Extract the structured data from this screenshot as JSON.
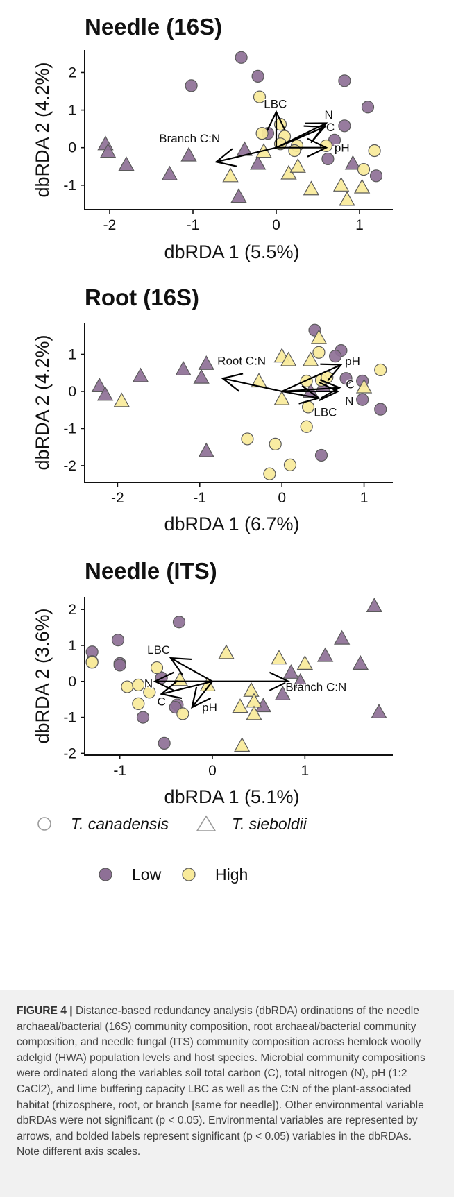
{
  "colors": {
    "low": "#8e7096",
    "high": "#f8ea9a",
    "marker_edge": "#5a5a5a",
    "open_marker": "#9a9a9a"
  },
  "chart_data": [
    {
      "type": "scatter",
      "title": "Needle (16S)",
      "xlabel": "dbRDA 1 (5.5%)",
      "ylabel": "dbRDA 2 (4.2%)",
      "xlim": [
        -2.3,
        1.4
      ],
      "ylim": [
        -1.65,
        2.6
      ],
      "xticks": [
        -2,
        -1,
        0,
        1
      ],
      "yticks": [
        -1,
        0,
        1,
        2
      ],
      "points": [
        {
          "x": -2.05,
          "y": 0.1,
          "shape": "triangle",
          "level": "Low"
        },
        {
          "x": -2.02,
          "y": -0.1,
          "shape": "triangle",
          "level": "Low"
        },
        {
          "x": -1.8,
          "y": -0.45,
          "shape": "triangle",
          "level": "Low"
        },
        {
          "x": -1.28,
          "y": -0.7,
          "shape": "triangle",
          "level": "Low"
        },
        {
          "x": -1.05,
          "y": -0.2,
          "shape": "triangle",
          "level": "Low"
        },
        {
          "x": -1.02,
          "y": 1.65,
          "shape": "circle",
          "level": "Low"
        },
        {
          "x": -0.42,
          "y": 2.4,
          "shape": "circle",
          "level": "Low"
        },
        {
          "x": -0.45,
          "y": -1.3,
          "shape": "triangle",
          "level": "Low"
        },
        {
          "x": -0.38,
          "y": -0.05,
          "shape": "triangle",
          "level": "Low"
        },
        {
          "x": -0.22,
          "y": -0.42,
          "shape": "triangle",
          "level": "Low"
        },
        {
          "x": -0.22,
          "y": 1.9,
          "shape": "circle",
          "level": "Low"
        },
        {
          "x": -0.1,
          "y": 0.38,
          "shape": "circle",
          "level": "Low"
        },
        {
          "x": 0.82,
          "y": 1.78,
          "shape": "circle",
          "level": "Low"
        },
        {
          "x": 1.1,
          "y": 1.08,
          "shape": "circle",
          "level": "Low"
        },
        {
          "x": 0.82,
          "y": 0.58,
          "shape": "circle",
          "level": "Low"
        },
        {
          "x": 0.7,
          "y": 0.2,
          "shape": "circle",
          "level": "Low"
        },
        {
          "x": 0.62,
          "y": -0.3,
          "shape": "circle",
          "level": "Low"
        },
        {
          "x": 0.92,
          "y": -0.42,
          "shape": "triangle",
          "level": "Low"
        },
        {
          "x": 1.2,
          "y": -0.75,
          "shape": "circle",
          "level": "Low"
        },
        {
          "x": -0.2,
          "y": 1.35,
          "shape": "circle",
          "level": "High"
        },
        {
          "x": -0.17,
          "y": 0.38,
          "shape": "circle",
          "level": "High"
        },
        {
          "x": -0.15,
          "y": -0.1,
          "shape": "triangle",
          "level": "High"
        },
        {
          "x": 0.05,
          "y": 0.62,
          "shape": "circle",
          "level": "High"
        },
        {
          "x": 0.1,
          "y": 0.3,
          "shape": "circle",
          "level": "High"
        },
        {
          "x": 0.05,
          "y": 0.1,
          "shape": "circle",
          "level": "High"
        },
        {
          "x": 0.25,
          "y": 0.05,
          "shape": "circle",
          "level": "High"
        },
        {
          "x": 0.22,
          "y": -0.08,
          "shape": "circle",
          "level": "High"
        },
        {
          "x": 0.6,
          "y": 0.05,
          "shape": "circle",
          "level": "High"
        },
        {
          "x": -0.55,
          "y": -0.75,
          "shape": "triangle",
          "level": "High"
        },
        {
          "x": 0.15,
          "y": -0.68,
          "shape": "triangle",
          "level": "High"
        },
        {
          "x": 0.26,
          "y": -0.5,
          "shape": "triangle",
          "level": "High"
        },
        {
          "x": 0.42,
          "y": -1.1,
          "shape": "triangle",
          "level": "High"
        },
        {
          "x": 0.78,
          "y": -1.0,
          "shape": "triangle",
          "level": "High"
        },
        {
          "x": 0.85,
          "y": -1.38,
          "shape": "triangle",
          "level": "High"
        },
        {
          "x": 1.03,
          "y": -1.05,
          "shape": "triangle",
          "level": "High"
        },
        {
          "x": 1.05,
          "y": -0.58,
          "shape": "circle",
          "level": "High"
        },
        {
          "x": 1.18,
          "y": -0.08,
          "shape": "circle",
          "level": "High"
        }
      ],
      "vectors": [
        {
          "label": "LBC",
          "x": 0.0,
          "y": 0.95,
          "lx": -0.01,
          "ly": 1.17
        },
        {
          "label": "N",
          "x": 0.6,
          "y": 0.65,
          "lx": 0.63,
          "ly": 0.88
        },
        {
          "label": "C",
          "x": 0.58,
          "y": 0.55,
          "lx": 0.65,
          "ly": 0.55
        },
        {
          "label": "pH",
          "x": 0.6,
          "y": 0.0,
          "lx": 0.79,
          "ly": 0.0
        },
        {
          "label": "Branch C:N",
          "x": -0.72,
          "y": -0.38,
          "lx": -1.04,
          "ly": 0.25
        }
      ]
    },
    {
      "type": "scatter",
      "title": "Root (16S)",
      "xlabel": "dbRDA 1 (6.7%)",
      "ylabel": "dbRDA 2 (4.2%)",
      "xlim": [
        -2.4,
        1.35
      ],
      "ylim": [
        -2.45,
        1.85
      ],
      "xticks": [
        -2,
        -1,
        0,
        1
      ],
      "yticks": [
        -2,
        -1,
        0,
        1
      ],
      "points": [
        {
          "x": -2.22,
          "y": 0.15,
          "shape": "triangle",
          "level": "Low"
        },
        {
          "x": -2.15,
          "y": -0.08,
          "shape": "triangle",
          "level": "Low"
        },
        {
          "x": -1.72,
          "y": 0.42,
          "shape": "triangle",
          "level": "Low"
        },
        {
          "x": -1.2,
          "y": 0.6,
          "shape": "triangle",
          "level": "Low"
        },
        {
          "x": -0.98,
          "y": 0.38,
          "shape": "triangle",
          "level": "Low"
        },
        {
          "x": -0.92,
          "y": 0.75,
          "shape": "triangle",
          "level": "Low"
        },
        {
          "x": -0.92,
          "y": -1.6,
          "shape": "triangle",
          "level": "Low"
        },
        {
          "x": 0.4,
          "y": 1.65,
          "shape": "circle",
          "level": "Low"
        },
        {
          "x": 0.72,
          "y": 1.1,
          "shape": "circle",
          "level": "Low"
        },
        {
          "x": 0.65,
          "y": 0.95,
          "shape": "circle",
          "level": "Low"
        },
        {
          "x": 0.78,
          "y": 0.35,
          "shape": "circle",
          "level": "Low"
        },
        {
          "x": 0.98,
          "y": 0.28,
          "shape": "circle",
          "level": "Low"
        },
        {
          "x": 0.98,
          "y": -0.22,
          "shape": "circle",
          "level": "Low"
        },
        {
          "x": 1.2,
          "y": -0.48,
          "shape": "circle",
          "level": "Low"
        },
        {
          "x": 0.48,
          "y": -1.72,
          "shape": "circle",
          "level": "Low"
        },
        {
          "x": 0.5,
          "y": 0.15,
          "shape": "triangle",
          "level": "Low"
        },
        {
          "x": 0.35,
          "y": 0.0,
          "shape": "triangle",
          "level": "Low"
        },
        {
          "x": -1.95,
          "y": -0.25,
          "shape": "triangle",
          "level": "High"
        },
        {
          "x": -0.28,
          "y": 0.28,
          "shape": "triangle",
          "level": "High"
        },
        {
          "x": 0.0,
          "y": 0.95,
          "shape": "triangle",
          "level": "High"
        },
        {
          "x": 0.08,
          "y": 0.85,
          "shape": "triangle",
          "level": "High"
        },
        {
          "x": 0.45,
          "y": 1.45,
          "shape": "triangle",
          "level": "High"
        },
        {
          "x": 0.35,
          "y": 0.85,
          "shape": "triangle",
          "level": "High"
        },
        {
          "x": 0.45,
          "y": 1.05,
          "shape": "circle",
          "level": "High"
        },
        {
          "x": 0.3,
          "y": 0.28,
          "shape": "circle",
          "level": "High"
        },
        {
          "x": 0.48,
          "y": 0.3,
          "shape": "circle",
          "level": "High"
        },
        {
          "x": 0.55,
          "y": 0.38,
          "shape": "circle",
          "level": "High"
        },
        {
          "x": 0.0,
          "y": -0.2,
          "shape": "triangle",
          "level": "High"
        },
        {
          "x": 0.32,
          "y": -0.42,
          "shape": "circle",
          "level": "High"
        },
        {
          "x": 1.0,
          "y": 0.12,
          "shape": "triangle",
          "level": "High"
        },
        {
          "x": 1.2,
          "y": 0.58,
          "shape": "circle",
          "level": "High"
        },
        {
          "x": -0.42,
          "y": -1.28,
          "shape": "circle",
          "level": "High"
        },
        {
          "x": -0.08,
          "y": -1.42,
          "shape": "circle",
          "level": "High"
        },
        {
          "x": 0.3,
          "y": -0.95,
          "shape": "circle",
          "level": "High"
        },
        {
          "x": 0.1,
          "y": -1.98,
          "shape": "circle",
          "level": "High"
        },
        {
          "x": -0.15,
          "y": -2.22,
          "shape": "circle",
          "level": "High"
        }
      ],
      "vectors": [
        {
          "label": "Root C:N",
          "x": -0.72,
          "y": 0.35,
          "lx": -0.49,
          "ly": 0.83
        },
        {
          "label": "pH",
          "x": 0.72,
          "y": 0.72,
          "lx": 0.86,
          "ly": 0.82
        },
        {
          "label": "C",
          "x": 0.7,
          "y": 0.1,
          "lx": 0.83,
          "ly": 0.2
        },
        {
          "label": "N",
          "x": 0.68,
          "y": 0.0,
          "lx": 0.82,
          "ly": -0.25
        },
        {
          "label": "LBC",
          "x": 0.45,
          "y": -0.18,
          "lx": 0.53,
          "ly": -0.55
        }
      ]
    },
    {
      "type": "scatter",
      "title": "Needle (ITS)",
      "xlabel": "dbRDA 1 (5.1%)",
      "ylabel": "dbRDA 2 (3.6%)",
      "xlim": [
        -1.38,
        1.95
      ],
      "ylim": [
        -2.05,
        2.35
      ],
      "xticks": [
        -1,
        0,
        1
      ],
      "yticks": [
        -2,
        -1,
        0,
        1,
        2
      ],
      "points": [
        {
          "x": -1.3,
          "y": 0.82,
          "shape": "circle",
          "level": "Low"
        },
        {
          "x": -1.02,
          "y": 1.15,
          "shape": "circle",
          "level": "Low"
        },
        {
          "x": -1.0,
          "y": 0.5,
          "shape": "circle",
          "level": "Low"
        },
        {
          "x": -1.0,
          "y": 0.45,
          "shape": "circle",
          "level": "Low"
        },
        {
          "x": -0.36,
          "y": 1.65,
          "shape": "circle",
          "level": "Low"
        },
        {
          "x": -0.55,
          "y": 0.1,
          "shape": "circle",
          "level": "Low"
        },
        {
          "x": -0.75,
          "y": -1.0,
          "shape": "circle",
          "level": "Low"
        },
        {
          "x": -0.52,
          "y": -1.72,
          "shape": "circle",
          "level": "Low"
        },
        {
          "x": -0.38,
          "y": -0.65,
          "shape": "circle",
          "level": "Low"
        },
        {
          "x": -0.4,
          "y": -0.72,
          "shape": "circle",
          "level": "Low"
        },
        {
          "x": 0.85,
          "y": 0.25,
          "shape": "triangle",
          "level": "Low"
        },
        {
          "x": 0.95,
          "y": 0.0,
          "shape": "triangle",
          "level": "Low"
        },
        {
          "x": 0.76,
          "y": -0.35,
          "shape": "triangle",
          "level": "Low"
        },
        {
          "x": 0.55,
          "y": -0.68,
          "shape": "triangle",
          "level": "Low"
        },
        {
          "x": 1.22,
          "y": 0.72,
          "shape": "triangle",
          "level": "Low"
        },
        {
          "x": 1.4,
          "y": 1.2,
          "shape": "triangle",
          "level": "Low"
        },
        {
          "x": 1.6,
          "y": 0.5,
          "shape": "triangle",
          "level": "Low"
        },
        {
          "x": 1.75,
          "y": 2.1,
          "shape": "triangle",
          "level": "Low"
        },
        {
          "x": 1.8,
          "y": -0.85,
          "shape": "triangle",
          "level": "Low"
        },
        {
          "x": -1.3,
          "y": 0.55,
          "shape": "circle",
          "level": "High"
        },
        {
          "x": -1.3,
          "y": 0.53,
          "shape": "circle",
          "level": "High"
        },
        {
          "x": -0.92,
          "y": -0.15,
          "shape": "circle",
          "level": "High"
        },
        {
          "x": -0.8,
          "y": -0.1,
          "shape": "circle",
          "level": "High"
        },
        {
          "x": -0.68,
          "y": -0.3,
          "shape": "circle",
          "level": "High"
        },
        {
          "x": -0.6,
          "y": 0.38,
          "shape": "circle",
          "level": "High"
        },
        {
          "x": -0.8,
          "y": -0.62,
          "shape": "circle",
          "level": "High"
        },
        {
          "x": -0.32,
          "y": -0.9,
          "shape": "circle",
          "level": "High"
        },
        {
          "x": -0.35,
          "y": 0.05,
          "shape": "triangle",
          "level": "High"
        },
        {
          "x": -0.05,
          "y": -0.1,
          "shape": "triangle",
          "level": "High"
        },
        {
          "x": 0.15,
          "y": 0.8,
          "shape": "triangle",
          "level": "High"
        },
        {
          "x": 0.3,
          "y": -0.7,
          "shape": "triangle",
          "level": "High"
        },
        {
          "x": 0.42,
          "y": -0.25,
          "shape": "triangle",
          "level": "High"
        },
        {
          "x": 0.45,
          "y": -0.55,
          "shape": "triangle",
          "level": "High"
        },
        {
          "x": 0.45,
          "y": -0.9,
          "shape": "triangle",
          "level": "High"
        },
        {
          "x": 0.72,
          "y": 0.65,
          "shape": "triangle",
          "level": "High"
        },
        {
          "x": 1.0,
          "y": 0.5,
          "shape": "triangle",
          "level": "High"
        },
        {
          "x": 0.32,
          "y": -1.78,
          "shape": "triangle",
          "level": "High"
        }
      ],
      "vectors": [
        {
          "label": "LBC",
          "x": -0.45,
          "y": 0.65,
          "lx": -0.58,
          "ly": 0.88
        },
        {
          "label": "N",
          "x": -0.62,
          "y": 0.0,
          "lx": -0.69,
          "ly": -0.05
        },
        {
          "label": "C",
          "x": -0.55,
          "y": -0.35,
          "lx": -0.55,
          "ly": -0.55
        },
        {
          "label": "pH",
          "x": -0.22,
          "y": -0.72,
          "lx": -0.03,
          "ly": -0.72
        },
        {
          "label": "Branch C:N",
          "x": 0.82,
          "y": 0.0,
          "lx": 1.12,
          "ly": -0.15
        }
      ]
    }
  ],
  "legend": {
    "shapes": [
      {
        "label": "T. canadensis",
        "shape": "circle"
      },
      {
        "label": "T. sieboldii",
        "shape": "triangle"
      }
    ],
    "levels": [
      {
        "label": "Low"
      },
      {
        "label": "High"
      }
    ]
  },
  "caption": {
    "label": "FIGURE 4 |",
    "text": "Distance-based redundancy analysis (dbRDA) ordinations of the needle archaeal/bacterial (16S) community composition, root archaeal/bacterial community composition, and needle fungal (ITS) community composition across hemlock woolly adelgid (HWA) population levels and host species. Microbial community compositions were ordinated along the variables soil total carbon (C), total nitrogen (N), pH (1:2 CaCl2), and lime buffering capacity LBC as well as the C:N of the plant-associated habitat (rhizosphere, root, or branch [same for needle]). Other environmental variable dbRDAs were not significant (p < 0.05). Environmental variables are represented by arrows, and bolded labels represent significant (p < 0.05) variables in the dbRDAs. Note different axis scales."
  }
}
